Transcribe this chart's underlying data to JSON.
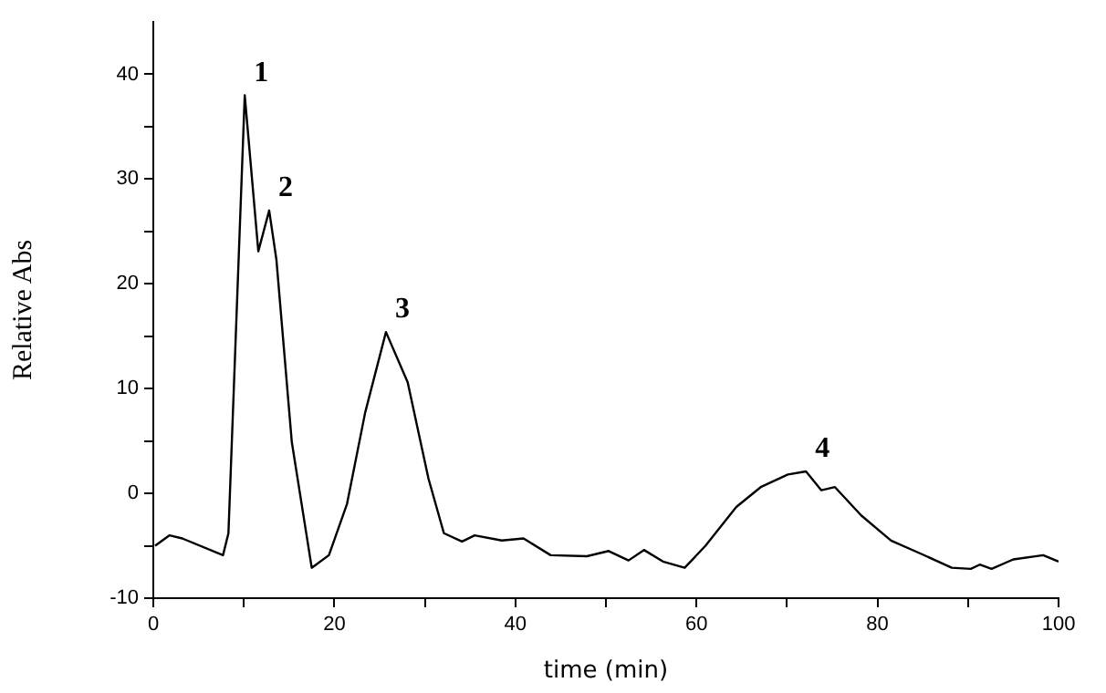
{
  "chart_data": {
    "type": "line",
    "xlabel": "time (min)",
    "ylabel": "Relative Abs",
    "xlim": [
      0,
      100
    ],
    "ylim": [
      -10,
      45
    ],
    "xticks": [
      0,
      {
        "value": 10,
        "label": null
      },
      20,
      {
        "value": 30,
        "label": null
      },
      40,
      {
        "value": 50,
        "label": null
      },
      60,
      {
        "value": 70,
        "label": null
      },
      80,
      {
        "value": 90,
        "label": null
      },
      100
    ],
    "yticks": [
      -10,
      {
        "value": -5,
        "label": null
      },
      0,
      {
        "value": 5,
        "label": null
      },
      10,
      {
        "value": 15,
        "label": null
      },
      20,
      {
        "value": 25,
        "label": null
      },
      30,
      {
        "value": 35,
        "label": null
      },
      40
    ],
    "grid": false,
    "legend": false,
    "marker": "none",
    "line_style": "solid",
    "annotations": [
      {
        "text": "1",
        "x": 10.1,
        "y": 38.0
      },
      {
        "text": "2",
        "x": 12.8,
        "y": 27.0
      },
      {
        "text": "3",
        "x": 25.7,
        "y": 15.4
      },
      {
        "text": "4",
        "x": 72.1,
        "y": 2.1
      }
    ],
    "series": [
      {
        "color": "#000000",
        "x": [
          0.2,
          1.8,
          3.2,
          7.7,
          8.3,
          10.1,
          11.6,
          12.8,
          13.6,
          15.3,
          17.5,
          19.4,
          21.4,
          23.4,
          25.7,
          28.1,
          30.4,
          32.1,
          34.1,
          35.5,
          38.5,
          40.9,
          43.9,
          47.9,
          50.3,
          52.5,
          54.2,
          56.3,
          58.7,
          61.0,
          64.4,
          67.1,
          70.1,
          72.1,
          73.8,
          75.3,
          78.2,
          81.5,
          84.9,
          88.2,
          90.3,
          91.3,
          92.6,
          95.0,
          98.3,
          100
        ],
        "values": [
          -5.0,
          -4.0,
          -4.3,
          -5.9,
          -3.8,
          38.0,
          23.1,
          27.0,
          22.3,
          4.9,
          -7.1,
          -5.9,
          -1.0,
          7.7,
          15.4,
          10.6,
          1.4,
          -3.8,
          -4.6,
          -4.0,
          -4.5,
          -4.3,
          -5.9,
          -6.0,
          -5.5,
          -6.4,
          -5.4,
          -6.5,
          -7.1,
          -5.0,
          -1.3,
          0.6,
          1.8,
          2.1,
          0.3,
          0.6,
          -2.1,
          -4.5,
          -5.8,
          -7.1,
          -7.2,
          -6.8,
          -7.2,
          -6.3,
          -5.9,
          -6.5
        ]
      }
    ]
  }
}
